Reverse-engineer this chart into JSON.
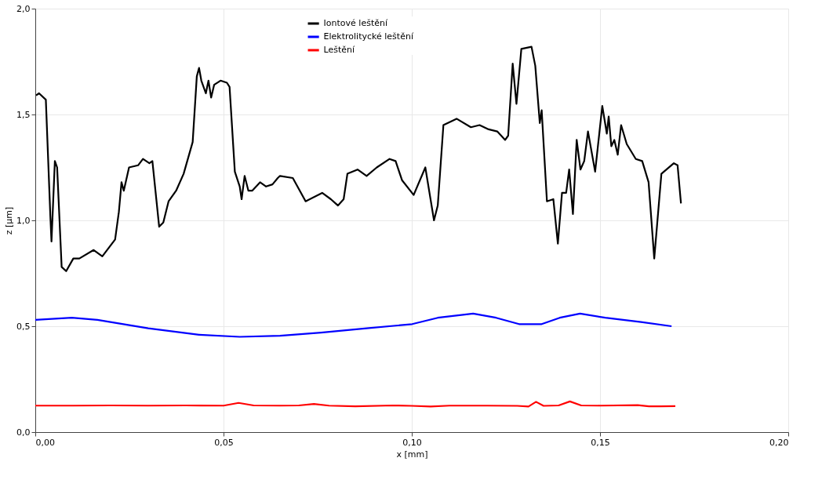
{
  "chart_data": {
    "type": "line",
    "xlabel": "x [mm]",
    "ylabel": "z [µm]",
    "xlim": [
      0,
      0.2
    ],
    "ylim": [
      0,
      2.0
    ],
    "xticks": [
      {
        "value": 0,
        "label": "0,00"
      },
      {
        "value": 0.05,
        "label": "0,05"
      },
      {
        "value": 0.1,
        "label": "0,10"
      },
      {
        "value": 0.15,
        "label": "0,15"
      },
      {
        "value": 0.2,
        "label": "0,20"
      }
    ],
    "yticks": [
      {
        "value": 0,
        "label": "0,0"
      },
      {
        "value": 0.5,
        "label": "0,5"
      },
      {
        "value": 1.0,
        "label": "1,0"
      },
      {
        "value": 1.5,
        "label": "1,5"
      },
      {
        "value": 2.0,
        "label": "2,0"
      }
    ],
    "grid": true,
    "legend": "top",
    "line_style": "solid",
    "marker": "none",
    "series": [
      {
        "name": "Iontové leštění",
        "color": "#000000",
        "x": [
          0.0002,
          0.001,
          0.0028,
          0.004,
          0.0043,
          0.0052,
          0.0058,
          0.007,
          0.0082,
          0.0101,
          0.0117,
          0.0155,
          0.0178,
          0.0212,
          0.0222,
          0.0229,
          0.0235,
          0.0249,
          0.0273,
          0.0286,
          0.0303,
          0.0311,
          0.0329,
          0.034,
          0.0354,
          0.0374,
          0.0394,
          0.0418,
          0.0429,
          0.0435,
          0.0441,
          0.0453,
          0.046,
          0.0467,
          0.0475,
          0.0492,
          0.0509,
          0.0516,
          0.053,
          0.0543,
          0.0548,
          0.0556,
          0.0566,
          0.0576,
          0.0597,
          0.0613,
          0.063,
          0.0644,
          0.065,
          0.0684,
          0.0718,
          0.0762,
          0.0785,
          0.0804,
          0.0819,
          0.0829,
          0.0856,
          0.088,
          0.0907,
          0.0941,
          0.0957,
          0.0974,
          0.1005,
          0.1036,
          0.1059,
          0.1069,
          0.1084,
          0.1119,
          0.1157,
          0.118,
          0.1204,
          0.1227,
          0.1248,
          0.1256,
          0.1268,
          0.1278,
          0.1291,
          0.1318,
          0.1328,
          0.134,
          0.1345,
          0.1359,
          0.1376,
          0.1388,
          0.1399,
          0.141,
          0.1418,
          0.1428,
          0.1438,
          0.1448,
          0.1458,
          0.1468,
          0.1487,
          0.1506,
          0.1518,
          0.1523,
          0.153,
          0.1538,
          0.1547,
          0.1556,
          0.1571,
          0.1595,
          0.1612,
          0.1629,
          0.1644,
          0.1663,
          0.1696,
          0.1706,
          0.1715
        ],
        "values": [
          1.59,
          1.6,
          1.57,
          1.02,
          0.9,
          1.28,
          1.25,
          0.78,
          0.76,
          0.82,
          0.82,
          0.86,
          0.83,
          0.91,
          1.04,
          1.18,
          1.14,
          1.25,
          1.26,
          1.29,
          1.27,
          1.28,
          0.97,
          0.99,
          1.09,
          1.14,
          1.22,
          1.37,
          1.68,
          1.72,
          1.66,
          1.6,
          1.66,
          1.58,
          1.64,
          1.66,
          1.65,
          1.63,
          1.23,
          1.16,
          1.1,
          1.21,
          1.14,
          1.14,
          1.18,
          1.16,
          1.17,
          1.2,
          1.21,
          1.2,
          1.09,
          1.13,
          1.1,
          1.07,
          1.1,
          1.22,
          1.24,
          1.21,
          1.25,
          1.29,
          1.28,
          1.19,
          1.12,
          1.25,
          1.0,
          1.07,
          1.45,
          1.48,
          1.44,
          1.45,
          1.43,
          1.42,
          1.38,
          1.4,
          1.74,
          1.55,
          1.81,
          1.82,
          1.73,
          1.46,
          1.52,
          1.09,
          1.1,
          0.89,
          1.13,
          1.13,
          1.24,
          1.03,
          1.38,
          1.24,
          1.28,
          1.42,
          1.23,
          1.54,
          1.41,
          1.49,
          1.35,
          1.38,
          1.31,
          1.45,
          1.36,
          1.29,
          1.28,
          1.18,
          0.82,
          1.22,
          1.27,
          1.26,
          1.08
        ]
      },
      {
        "name": "Elektrolitycké leštění",
        "color": "#0000ff",
        "x": [
          0.0,
          0.0097,
          0.0165,
          0.03,
          0.0435,
          0.0543,
          0.065,
          0.0759,
          0.088,
          0.1001,
          0.1069,
          0.1163,
          0.1224,
          0.1285,
          0.1345,
          0.1393,
          0.1447,
          0.1514,
          0.1609,
          0.169
        ],
        "values": [
          0.53,
          0.54,
          0.53,
          0.49,
          0.46,
          0.45,
          0.455,
          0.47,
          0.49,
          0.51,
          0.54,
          0.56,
          0.54,
          0.51,
          0.51,
          0.54,
          0.56,
          0.54,
          0.52,
          0.5
        ]
      },
      {
        "name": "Leštění",
        "color": "#ff0000",
        "x": [
          0.0,
          0.01,
          0.02,
          0.03,
          0.04,
          0.05,
          0.054,
          0.058,
          0.065,
          0.07,
          0.074,
          0.078,
          0.085,
          0.095,
          0.1,
          0.105,
          0.11,
          0.12,
          0.128,
          0.131,
          0.133,
          0.135,
          0.139,
          0.142,
          0.145,
          0.15,
          0.16,
          0.163,
          0.166,
          0.17
        ],
        "values": [
          0.125,
          0.125,
          0.126,
          0.125,
          0.126,
          0.125,
          0.138,
          0.126,
          0.125,
          0.126,
          0.133,
          0.125,
          0.122,
          0.126,
          0.124,
          0.121,
          0.125,
          0.125,
          0.124,
          0.121,
          0.143,
          0.124,
          0.126,
          0.145,
          0.126,
          0.125,
          0.127,
          0.122,
          0.122,
          0.123
        ]
      }
    ]
  }
}
